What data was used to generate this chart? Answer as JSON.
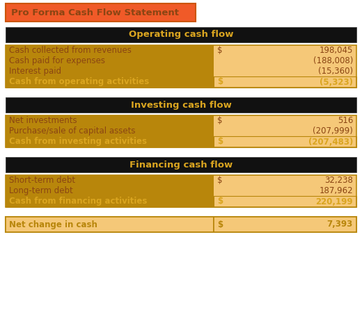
{
  "title": "Pro Forma Cash Flow Statement",
  "title_bg": "#F05A28",
  "title_text_color": "#8B4513",
  "title_border_color": "#CC5500",
  "section_header_bg": "#111111",
  "section_header_text_color": "#DAA520",
  "row_bg_dark": "#B8860B",
  "row_bg_light": "#F5C878",
  "summary_row_bg": "#B8860B",
  "summary_row_text_color": "#DAA520",
  "normal_row_text_color": "#8B4513",
  "net_change_bg": "#F5C878",
  "net_change_border": "#B8860B",
  "net_change_text_color": "#B8860B",
  "page_bg": "#FFFFFF",
  "sections": [
    {
      "header": "Operating cash flow",
      "rows": [
        {
          "label": "Cash collected from revenues",
          "dollar": "$",
          "value": "198,045",
          "bold": false
        },
        {
          "label": "Cash paid for expenses",
          "dollar": "",
          "value": "(188,008)",
          "bold": false
        },
        {
          "label": "Interest paid",
          "dollar": "",
          "value": "(15,360)",
          "bold": false
        },
        {
          "label": "Cash from operating activities",
          "dollar": "$",
          "value": "(5,323)",
          "bold": true
        }
      ]
    },
    {
      "header": "Investing cash flow",
      "rows": [
        {
          "label": "Net investments",
          "dollar": "$",
          "value": "516",
          "bold": false
        },
        {
          "label": "Purchase/sale of capital assets",
          "dollar": "",
          "value": "(207,999)",
          "bold": false
        },
        {
          "label": "Cash from investing activities",
          "dollar": "$",
          "value": "(207,483)",
          "bold": true
        }
      ]
    },
    {
      "header": "Financing cash flow",
      "rows": [
        {
          "label": "Short-term debt",
          "dollar": "$",
          "value": "32,238",
          "bold": false
        },
        {
          "label": "Long-term debt",
          "dollar": "",
          "value": "187,962",
          "bold": false
        },
        {
          "label": "Cash from financing activities",
          "dollar": "$",
          "value": "220,199",
          "bold": true
        }
      ]
    }
  ],
  "net_change": {
    "label": "Net change in cash",
    "dollar": "$",
    "value": "7,393"
  }
}
